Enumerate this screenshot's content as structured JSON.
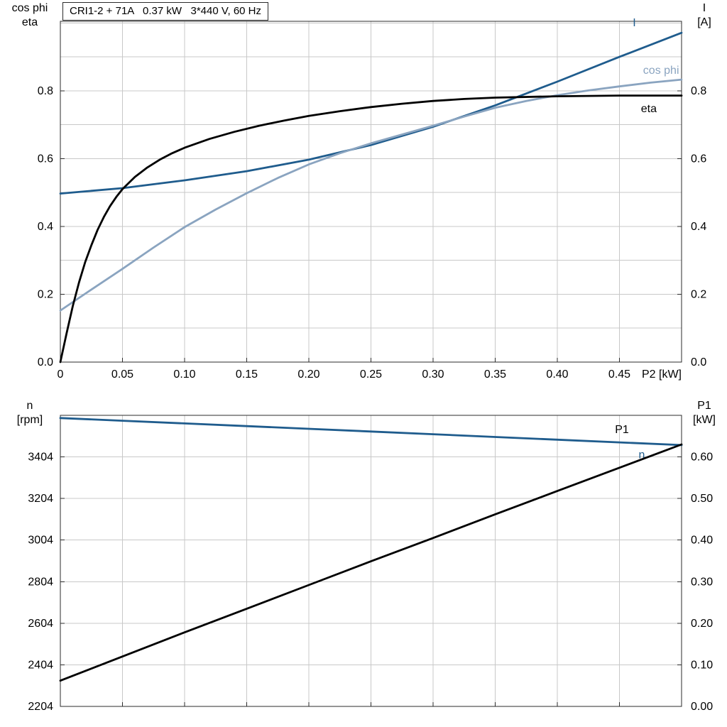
{
  "accent_colors": {
    "dark_blue": "#1f5c8d",
    "light_blue": "#8aa4c0",
    "black": "#000000",
    "grid": "#c8c8c8",
    "frame": "#2b2b2b",
    "text": "#000000"
  },
  "chart_data": [
    {
      "id": "motor-electrical-curves",
      "type": "line",
      "title": "CRI1-2 + 71A   0.37 kW   3*440 V, 60 Hz",
      "xlabel": "P2 [kW]",
      "left_axis_title_line1": "cos phi",
      "left_axis_title_line2": "eta",
      "right_axis_title_line1": "I",
      "right_axis_title_line2": "[A]",
      "xlim": [
        0,
        0.5
      ],
      "left_ylim": [
        0,
        1.005
      ],
      "right_ylim": [
        0,
        1.005
      ],
      "x_ticks": [
        0,
        0.05,
        0.1,
        0.15,
        0.2,
        0.25,
        0.3,
        0.35,
        0.4,
        0.45
      ],
      "x_tick_labels": [
        "0",
        "0.05",
        "0.10",
        "0.15",
        "0.20",
        "0.25",
        "0.30",
        "0.35",
        "0.40",
        "0.45"
      ],
      "left_ticks": [
        0,
        0.2,
        0.4,
        0.6,
        0.8
      ],
      "left_tick_labels": [
        "0.0",
        "0.2",
        "0.4",
        "0.6",
        "0.8"
      ],
      "right_ticks": [
        0,
        0.2,
        0.4,
        0.6,
        0.8
      ],
      "right_tick_labels": [
        "0.0",
        "0.2",
        "0.4",
        "0.6",
        "0.8"
      ],
      "x_grid": [
        0.05,
        0.1,
        0.15,
        0.2,
        0.25,
        0.3,
        0.35,
        0.4,
        0.45
      ],
      "left_grid": [
        0.1,
        0.2,
        0.3,
        0.4,
        0.5,
        0.6,
        0.7,
        0.8,
        0.9,
        1.0
      ],
      "grid_on": true,
      "legend_position": "inline-end-labels",
      "series": [
        {
          "name": "I",
          "axis": "right",
          "color_key": "dark_blue",
          "label_x": 0.462,
          "label_y": 0.99,
          "label_anchor": "middle",
          "x": [
            0,
            0.05,
            0.1,
            0.15,
            0.2,
            0.25,
            0.3,
            0.35,
            0.4,
            0.45,
            0.5
          ],
          "y": [
            0.497,
            0.513,
            0.536,
            0.563,
            0.597,
            0.64,
            0.694,
            0.757,
            0.827,
            0.9,
            0.971
          ]
        },
        {
          "name": "cos phi",
          "axis": "left",
          "color_key": "light_blue",
          "label_x": 0.498,
          "label_y": 0.85,
          "label_anchor": "end",
          "x": [
            0,
            0.025,
            0.05,
            0.075,
            0.1,
            0.125,
            0.15,
            0.175,
            0.2,
            0.225,
            0.25,
            0.275,
            0.3,
            0.325,
            0.35,
            0.375,
            0.4,
            0.425,
            0.45,
            0.475,
            0.5
          ],
          "y": [
            0.152,
            0.214,
            0.275,
            0.338,
            0.398,
            0.45,
            0.498,
            0.543,
            0.583,
            0.616,
            0.645,
            0.671,
            0.697,
            0.724,
            0.75,
            0.77,
            0.787,
            0.801,
            0.813,
            0.824,
            0.833
          ]
        },
        {
          "name": "eta",
          "axis": "left",
          "color_key": "black",
          "label_x": 0.48,
          "label_y": 0.737,
          "label_anchor": "end",
          "x": [
            0,
            0.005,
            0.01,
            0.015,
            0.02,
            0.025,
            0.03,
            0.035,
            0.04,
            0.045,
            0.05,
            0.06,
            0.07,
            0.08,
            0.09,
            0.1,
            0.12,
            0.14,
            0.16,
            0.18,
            0.2,
            0.225,
            0.25,
            0.275,
            0.3,
            0.325,
            0.35,
            0.4,
            0.45,
            0.5
          ],
          "y": [
            0,
            0.085,
            0.165,
            0.235,
            0.295,
            0.345,
            0.39,
            0.428,
            0.46,
            0.487,
            0.51,
            0.546,
            0.574,
            0.597,
            0.616,
            0.632,
            0.658,
            0.679,
            0.697,
            0.712,
            0.726,
            0.74,
            0.752,
            0.762,
            0.77,
            0.776,
            0.78,
            0.784,
            0.786,
            0.786
          ]
        }
      ]
    },
    {
      "id": "motor-speed-power-curves",
      "type": "line",
      "title": "",
      "xlabel": "",
      "left_axis_title_line1": "n",
      "left_axis_title_line2": "[rpm]",
      "right_axis_title_line1": "P1",
      "right_axis_title_line2": "[kW]",
      "xlim": [
        0,
        0.5
      ],
      "left_ylim": [
        2204,
        3604
      ],
      "right_ylim": [
        0,
        0.7
      ],
      "x_ticks": [
        0,
        0.05,
        0.1,
        0.15,
        0.2,
        0.25,
        0.3,
        0.35,
        0.4,
        0.45
      ],
      "x_tick_labels": [],
      "left_ticks": [
        2204,
        2404,
        2604,
        2804,
        3004,
        3204,
        3404
      ],
      "left_tick_labels": [
        "2204",
        "2404",
        "2604",
        "2804",
        "3004",
        "3204",
        "3404"
      ],
      "right_ticks": [
        0,
        0.1,
        0.2,
        0.3,
        0.4,
        0.5,
        0.6
      ],
      "right_tick_labels": [
        "0.00",
        "0.10",
        "0.20",
        "0.30",
        "0.40",
        "0.50",
        "0.60"
      ],
      "x_grid": [
        0.05,
        0.1,
        0.15,
        0.2,
        0.25,
        0.3,
        0.35,
        0.4,
        0.45
      ],
      "left_grid": [
        2404,
        2604,
        2804,
        3004,
        3204,
        3404
      ],
      "grid_on": true,
      "legend_position": "inline-end-labels",
      "series": [
        {
          "name": "n",
          "axis": "left",
          "color_key": "dark_blue",
          "label_x": 0.468,
          "label_y": 3398,
          "label_anchor": "middle",
          "x": [
            0,
            0.05,
            0.1,
            0.15,
            0.2,
            0.25,
            0.3,
            0.35,
            0.4,
            0.45,
            0.5
          ],
          "y": [
            3591,
            3578,
            3565,
            3552,
            3539,
            3526,
            3513,
            3500,
            3487,
            3474,
            3461
          ]
        },
        {
          "name": "P1",
          "axis": "right",
          "color_key": "black",
          "label_x": 0.452,
          "label_y": 0.657,
          "label_anchor": "middle",
          "x": [
            0,
            0.05,
            0.1,
            0.15,
            0.2,
            0.25,
            0.3,
            0.35,
            0.4,
            0.45,
            0.5
          ],
          "y": [
            0.062,
            0.12,
            0.178,
            0.235,
            0.292,
            0.349,
            0.405,
            0.462,
            0.518,
            0.574,
            0.63
          ]
        }
      ]
    }
  ]
}
